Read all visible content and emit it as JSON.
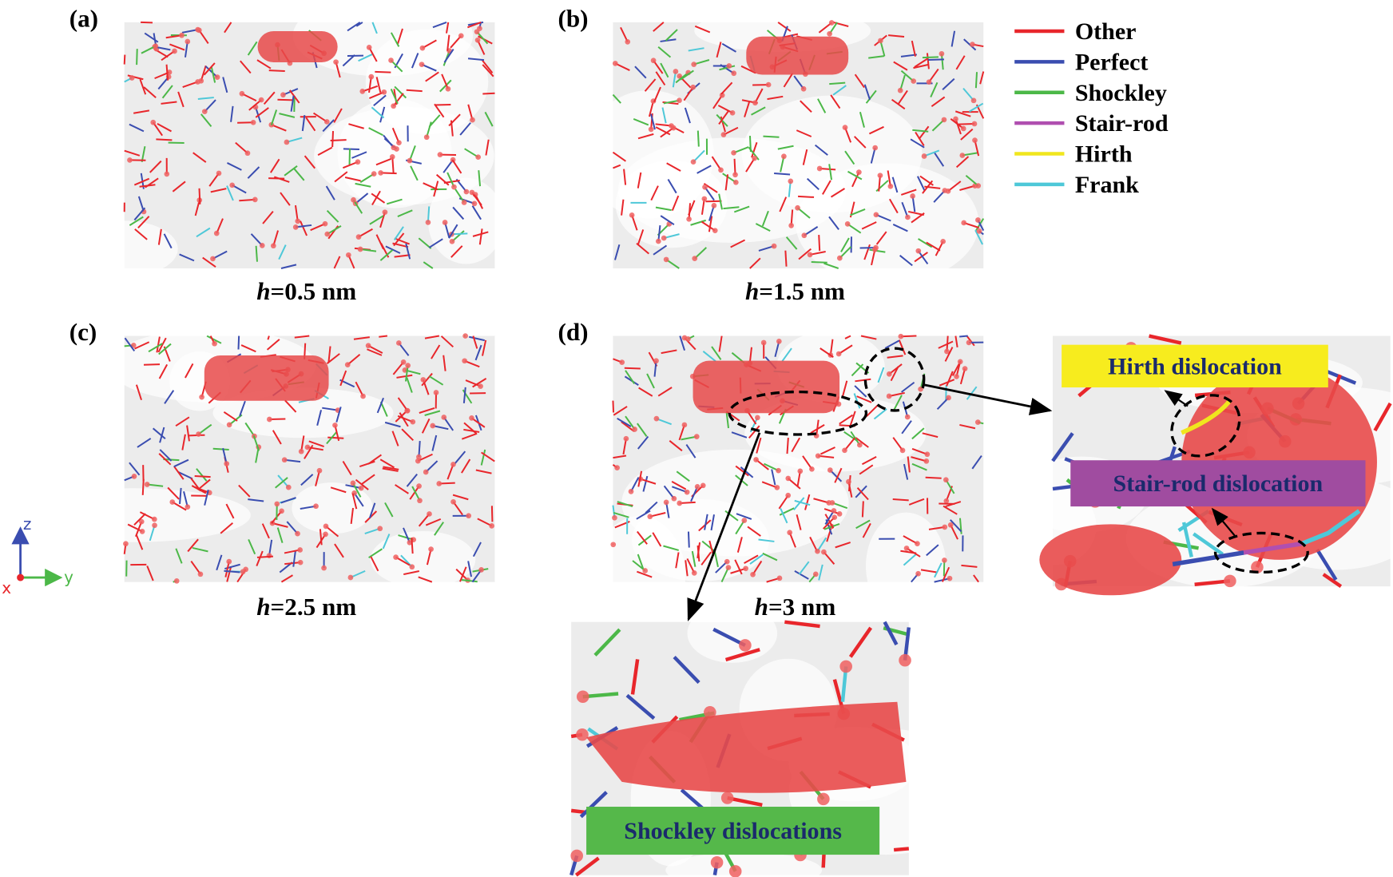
{
  "panels": [
    {
      "label": "(a)",
      "caption": {
        "symbol": "h",
        "text": "=0.5 nm"
      }
    },
    {
      "label": "(b)",
      "caption": {
        "symbol": "h",
        "text": "=1.5 nm"
      }
    },
    {
      "label": "(c)",
      "caption": {
        "symbol": "h",
        "text": "=2.5 nm"
      }
    },
    {
      "label": "(d)",
      "caption": {
        "symbol": "h",
        "text": "=3 nm"
      }
    }
  ],
  "legend": [
    {
      "name": "Other",
      "color": "#e8262b"
    },
    {
      "name": "Perfect",
      "color": "#3a4db0"
    },
    {
      "name": "Shockley",
      "color": "#4cb848"
    },
    {
      "name": "Stair-rod",
      "color": "#b04fb0"
    },
    {
      "name": "Hirth",
      "color": "#f0e61e"
    },
    {
      "name": "Frank",
      "color": "#4ec8d8"
    }
  ],
  "callouts": [
    {
      "text": "Hirth dislocation",
      "background": "#f7ec1e"
    },
    {
      "text": "Stair-rod dislocation",
      "background": "#a04ca0"
    },
    {
      "text": "Shockley dislocations",
      "background": "#55b84a"
    }
  ],
  "axes": {
    "z": "z",
    "y": "y",
    "x": "x"
  }
}
